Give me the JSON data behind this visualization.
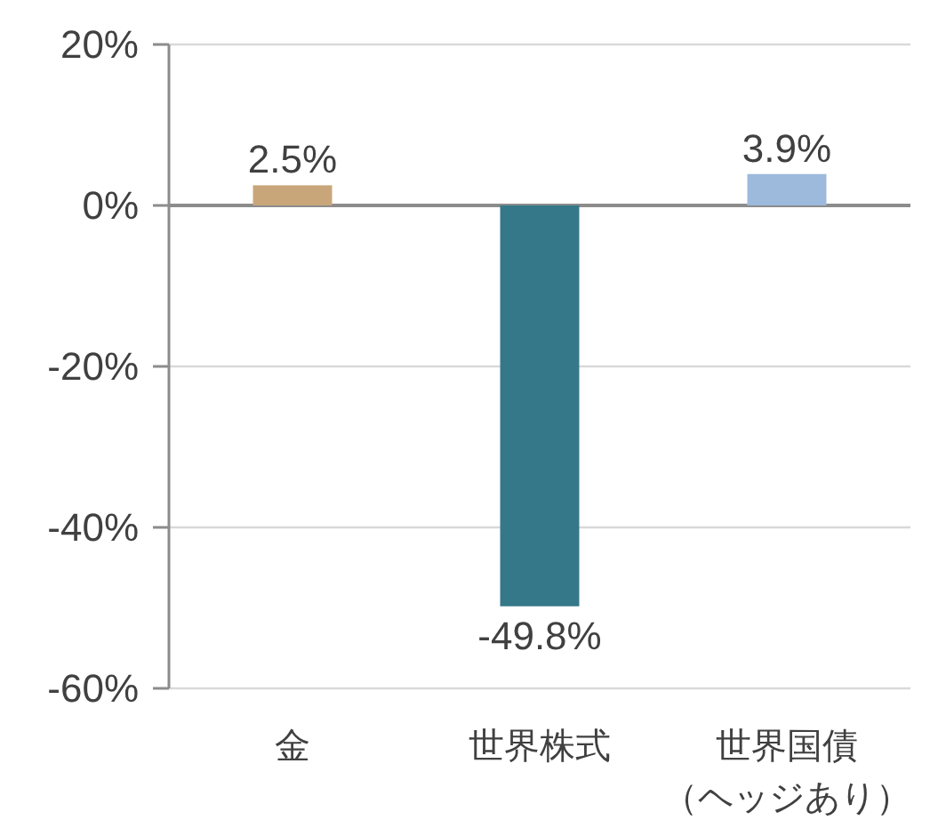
{
  "chart_data": {
    "type": "bar",
    "categories": [
      "金",
      "世界株式",
      "世界国債（ヘッジあり）"
    ],
    "values": [
      2.5,
      -49.8,
      3.9
    ],
    "colors": [
      "#c9a67a",
      "#35788a",
      "#9dbadc"
    ],
    "value_labels": [
      "2.5%",
      "-49.8%",
      "3.9%"
    ],
    "ylim": [
      -60,
      20
    ],
    "yticks": [
      {
        "value": 20,
        "label": "20%"
      },
      {
        "value": 0,
        "label": "0%"
      },
      {
        "value": -20,
        "label": "-20%"
      },
      {
        "value": -40,
        "label": "-40%"
      },
      {
        "value": -60,
        "label": "-60%"
      }
    ],
    "grid": "y"
  }
}
